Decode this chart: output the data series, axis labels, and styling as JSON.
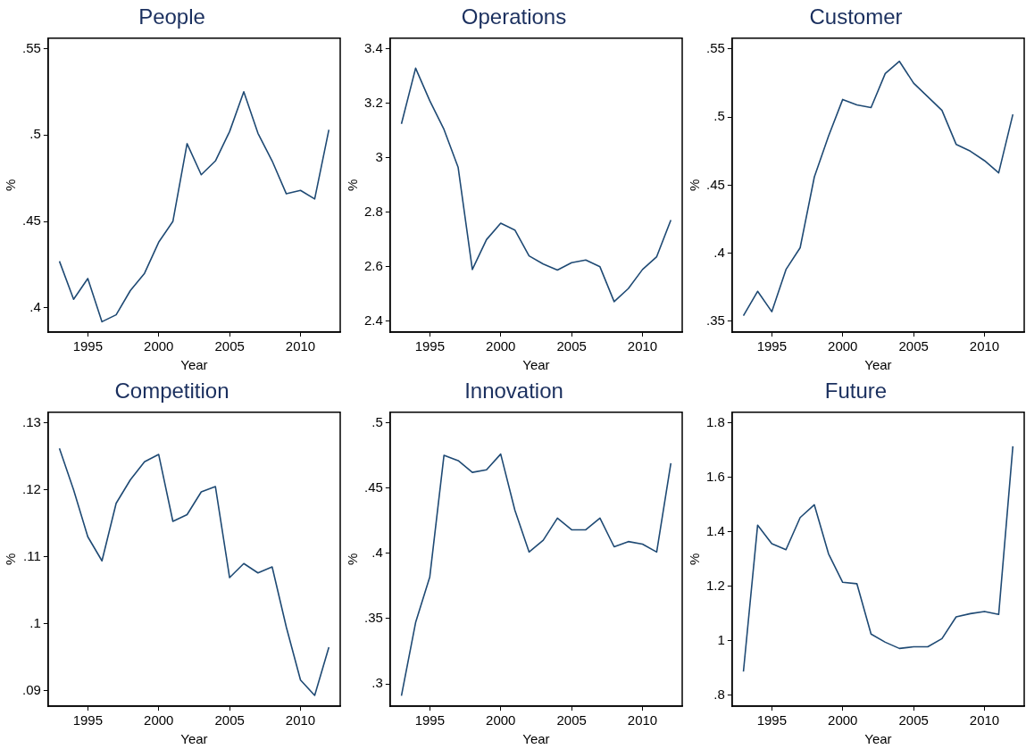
{
  "chart_data": [
    {
      "type": "line",
      "title": "People",
      "xlabel": "Year",
      "ylabel": "%",
      "grid": false,
      "legend": false,
      "x": [
        1993,
        1994,
        1995,
        1996,
        1997,
        1998,
        1999,
        2000,
        2001,
        2002,
        2003,
        2004,
        2005,
        2006,
        2007,
        2008,
        2009,
        2010,
        2011,
        2012
      ],
      "series": [
        {
          "color": "#1f4a74",
          "values": [
            0.427,
            0.405,
            0.417,
            0.392,
            0.396,
            0.41,
            0.42,
            0.438,
            0.45,
            0.495,
            0.477,
            0.485,
            0.502,
            0.525,
            0.501,
            0.485,
            0.466,
            0.468,
            0.463,
            0.503
          ]
        }
      ],
      "xlim": [
        1992.2,
        2012.8
      ],
      "xticks": [
        1995,
        2000,
        2005,
        2010
      ],
      "ylim": [
        0.386,
        0.556
      ],
      "yticks": [
        {
          "value": 0.4,
          "label": ".4"
        },
        {
          "value": 0.45,
          "label": ".45"
        },
        {
          "value": 0.5,
          "label": ".5"
        },
        {
          "value": 0.55,
          "label": ".55"
        }
      ]
    },
    {
      "type": "line",
      "title": "Operations",
      "xlabel": "Year",
      "ylabel": "%",
      "grid": false,
      "legend": false,
      "x": [
        1993,
        1994,
        1995,
        1996,
        1997,
        1998,
        1999,
        2000,
        2001,
        2002,
        2003,
        2004,
        2005,
        2006,
        2007,
        2008,
        2009,
        2010,
        2011,
        2012
      ],
      "series": [
        {
          "color": "#1f4a74",
          "values": [
            3.125,
            3.33,
            3.21,
            3.105,
            2.965,
            2.59,
            2.7,
            2.76,
            2.735,
            2.64,
            2.61,
            2.588,
            2.615,
            2.625,
            2.6,
            2.472,
            2.52,
            2.59,
            2.637,
            2.772
          ]
        }
      ],
      "xlim": [
        1992.2,
        2012.8
      ],
      "xticks": [
        1995,
        2000,
        2005,
        2010
      ],
      "ylim": [
        2.36,
        3.44
      ],
      "yticks": [
        {
          "value": 2.4,
          "label": "2.4"
        },
        {
          "value": 2.6,
          "label": "2.6"
        },
        {
          "value": 2.8,
          "label": "2.8"
        },
        {
          "value": 3,
          "label": "3"
        },
        {
          "value": 3.2,
          "label": "3.2"
        },
        {
          "value": 3.4,
          "label": "3.4"
        }
      ]
    },
    {
      "type": "line",
      "title": "Customer",
      "xlabel": "Year",
      "ylabel": "%",
      "grid": false,
      "legend": false,
      "x": [
        1993,
        1994,
        1995,
        1996,
        1997,
        1998,
        1999,
        2000,
        2001,
        2002,
        2003,
        2004,
        2005,
        2006,
        2007,
        2008,
        2009,
        2010,
        2011,
        2012
      ],
      "series": [
        {
          "color": "#1f4a74",
          "values": [
            0.354,
            0.372,
            0.357,
            0.388,
            0.404,
            0.456,
            0.486,
            0.513,
            0.509,
            0.507,
            0.532,
            0.541,
            0.525,
            0.515,
            0.505,
            0.48,
            0.475,
            0.468,
            0.459,
            0.502
          ]
        }
      ],
      "xlim": [
        1992.2,
        2012.8
      ],
      "xticks": [
        1995,
        2000,
        2005,
        2010
      ],
      "ylim": [
        0.342,
        0.558
      ],
      "yticks": [
        {
          "value": 0.35,
          "label": ".35"
        },
        {
          "value": 0.4,
          "label": ".4"
        },
        {
          "value": 0.45,
          "label": ".45"
        },
        {
          "value": 0.5,
          "label": ".5"
        },
        {
          "value": 0.55,
          "label": ".55"
        }
      ]
    },
    {
      "type": "line",
      "title": "Competition",
      "xlabel": "Year",
      "ylabel": "%",
      "grid": false,
      "legend": false,
      "x": [
        1993,
        1994,
        1995,
        1996,
        1997,
        1998,
        1999,
        2000,
        2001,
        2002,
        2003,
        2004,
        2005,
        2006,
        2007,
        2008,
        2009,
        2010,
        2011,
        2012
      ],
      "series": [
        {
          "color": "#1f4a74",
          "values": [
            0.1262,
            0.12,
            0.113,
            0.1094,
            0.118,
            0.1215,
            0.1242,
            0.1253,
            0.1153,
            0.1163,
            0.1197,
            0.1205,
            0.1069,
            0.109,
            0.1076,
            0.1085,
            0.0995,
            0.0916,
            0.0893,
            0.0965
          ]
        }
      ],
      "xlim": [
        1992.2,
        2012.8
      ],
      "xticks": [
        1995,
        2000,
        2005,
        2010
      ],
      "ylim": [
        0.0877,
        0.1316
      ],
      "yticks": [
        {
          "value": 0.09,
          "label": ".09"
        },
        {
          "value": 0.1,
          "label": ".1"
        },
        {
          "value": 0.11,
          "label": ".11"
        },
        {
          "value": 0.12,
          "label": ".12"
        },
        {
          "value": 0.13,
          "label": ".13"
        }
      ]
    },
    {
      "type": "line",
      "title": "Innovation",
      "xlabel": "Year",
      "ylabel": "%",
      "grid": false,
      "legend": false,
      "x": [
        1993,
        1994,
        1995,
        1996,
        1997,
        1998,
        1999,
        2000,
        2001,
        2002,
        2003,
        2004,
        2005,
        2006,
        2007,
        2008,
        2009,
        2010,
        2011,
        2012
      ],
      "series": [
        {
          "color": "#1f4a74",
          "values": [
            0.291,
            0.347,
            0.382,
            0.475,
            0.471,
            0.462,
            0.464,
            0.476,
            0.433,
            0.401,
            0.41,
            0.427,
            0.418,
            0.418,
            0.427,
            0.405,
            0.409,
            0.407,
            0.401,
            0.469
          ]
        }
      ],
      "xlim": [
        1992.2,
        2012.8
      ],
      "xticks": [
        1995,
        2000,
        2005,
        2010
      ],
      "ylim": [
        0.283,
        0.508
      ],
      "yticks": [
        {
          "value": 0.3,
          "label": ".3"
        },
        {
          "value": 0.35,
          "label": ".35"
        },
        {
          "value": 0.4,
          "label": ".4"
        },
        {
          "value": 0.45,
          "label": ".45"
        },
        {
          "value": 0.5,
          "label": ".5"
        }
      ]
    },
    {
      "type": "line",
      "title": "Future",
      "xlabel": "Year",
      "ylabel": "%",
      "grid": false,
      "legend": false,
      "x": [
        1993,
        1994,
        1995,
        1996,
        1997,
        1998,
        1999,
        2000,
        2001,
        2002,
        2003,
        2004,
        2005,
        2006,
        2007,
        2008,
        2009,
        2010,
        2011,
        2012
      ],
      "series": [
        {
          "color": "#1f4a74",
          "values": [
            0.887,
            1.425,
            1.357,
            1.335,
            1.453,
            1.5,
            1.32,
            1.215,
            1.21,
            1.025,
            0.995,
            0.972,
            0.978,
            0.978,
            1.008,
            1.088,
            1.1,
            1.108,
            1.097,
            1.715
          ]
        }
      ],
      "xlim": [
        1992.2,
        2012.8
      ],
      "xticks": [
        1995,
        2000,
        2005,
        2010
      ],
      "ylim": [
        0.76,
        1.84
      ],
      "yticks": [
        {
          "value": 0.8,
          "label": ".8"
        },
        {
          "value": 1,
          "label": "1"
        },
        {
          "value": 1.2,
          "label": "1.2"
        },
        {
          "value": 1.4,
          "label": "1.4"
        },
        {
          "value": 1.6,
          "label": "1.6"
        },
        {
          "value": 1.8,
          "label": "1.8"
        }
      ]
    }
  ]
}
